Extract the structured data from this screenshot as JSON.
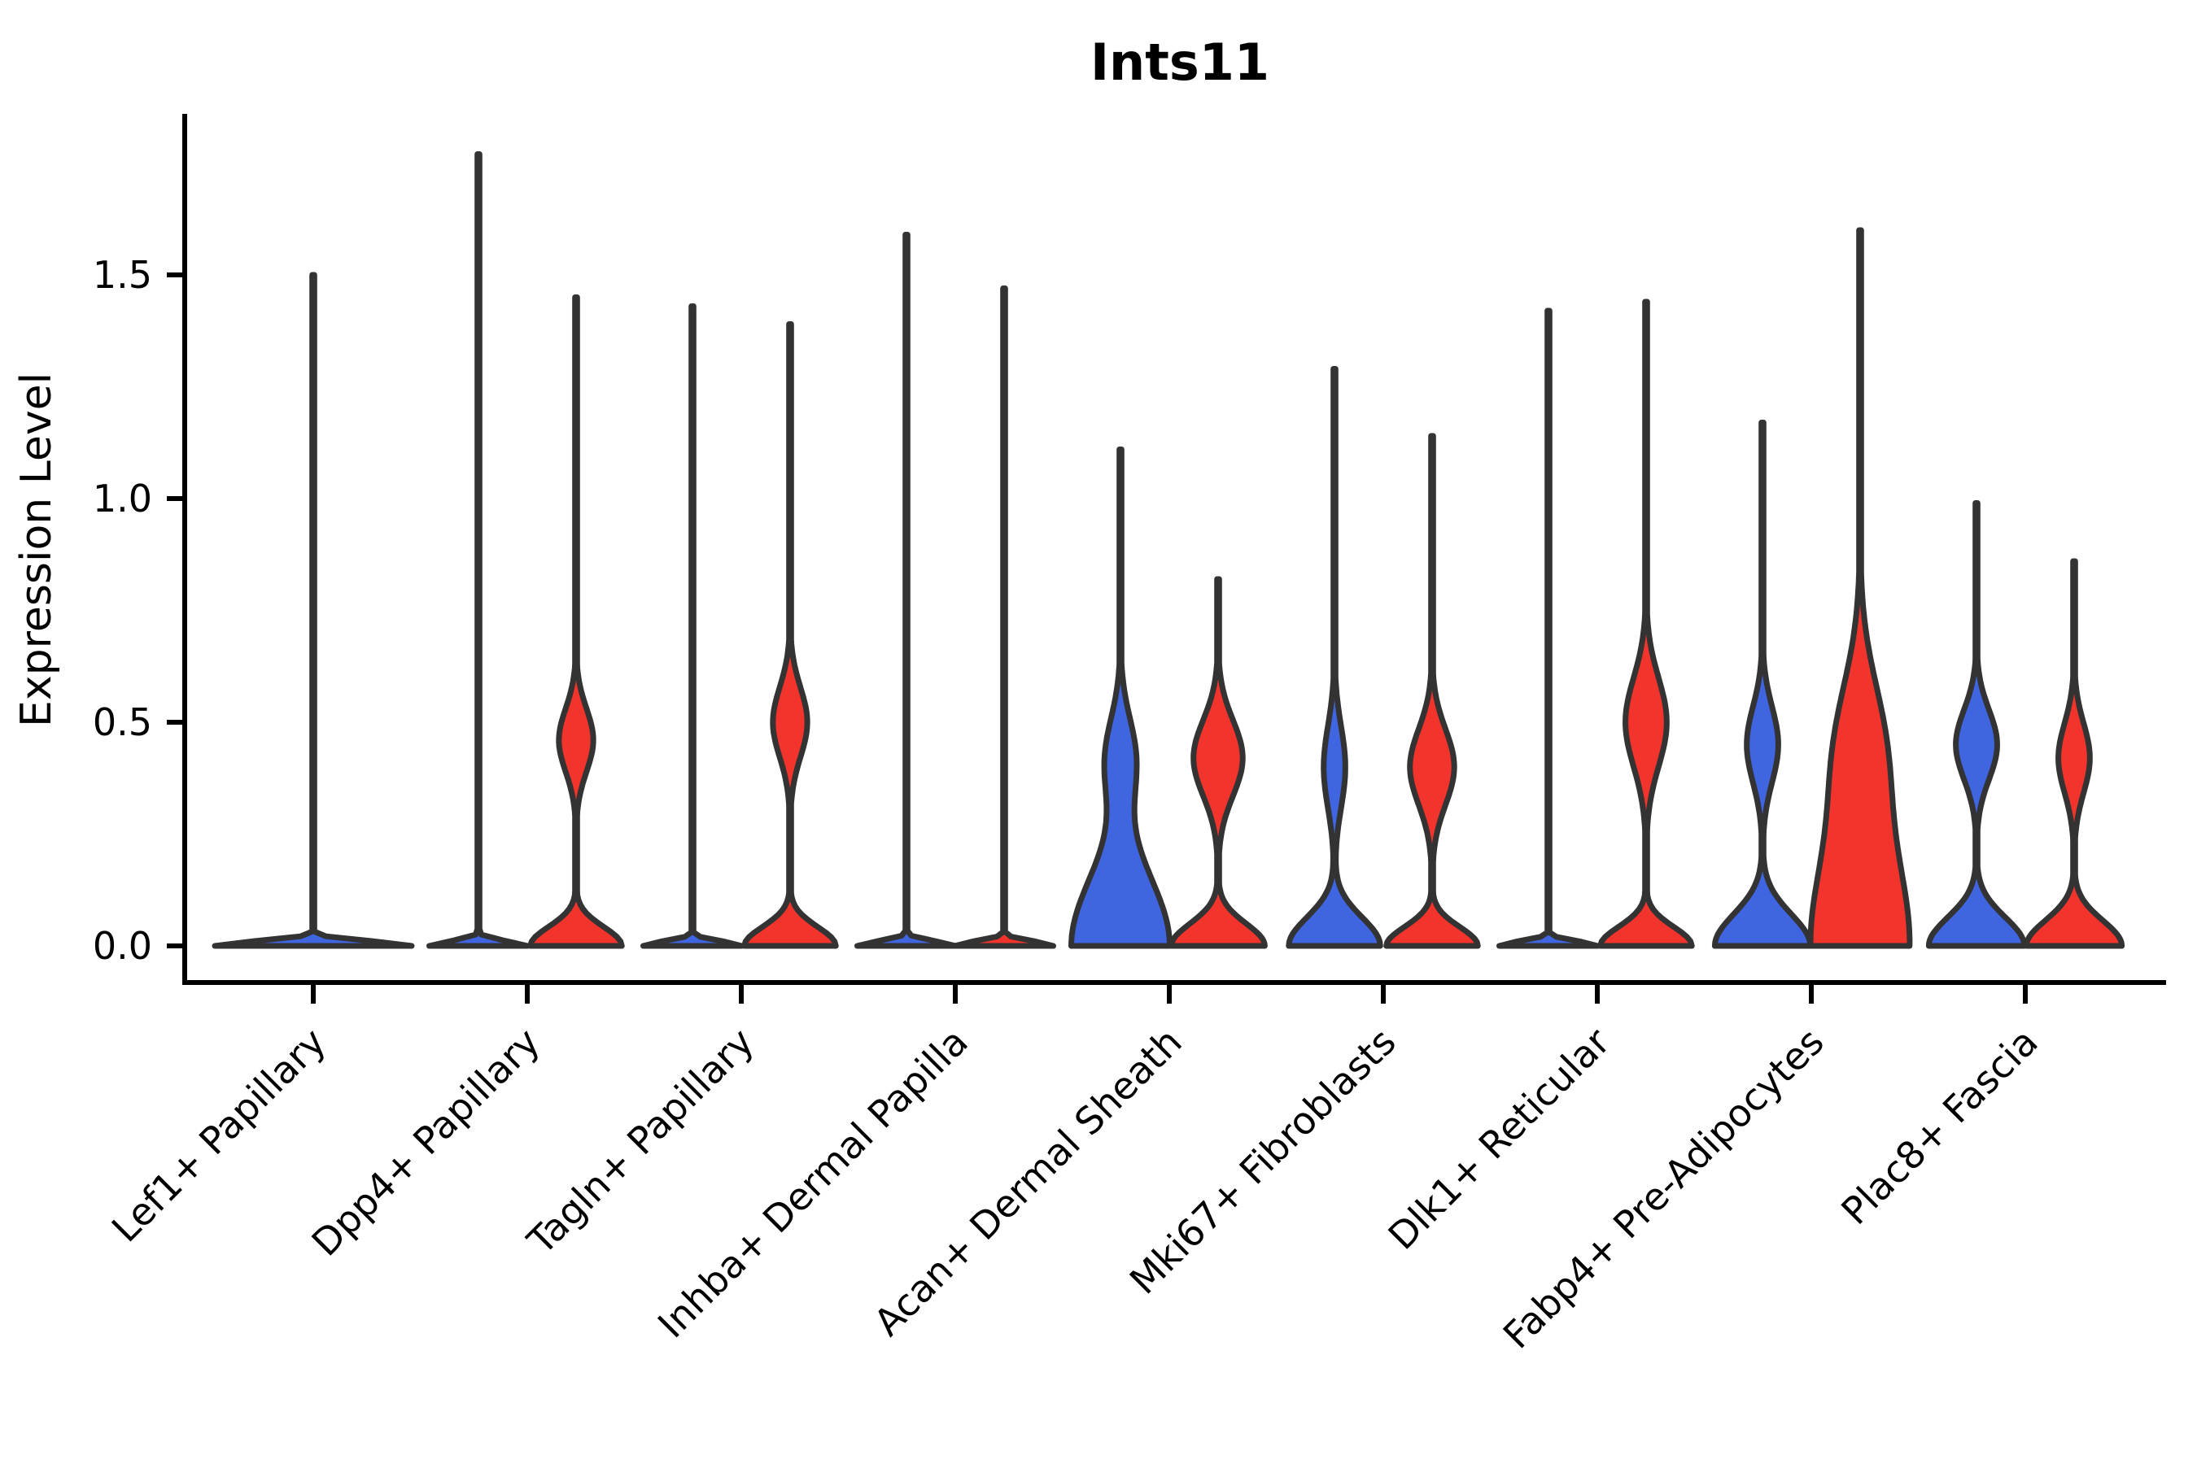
{
  "title": "Ints11",
  "ylabel": "Expression Level",
  "colors": {
    "group1": "#4065E0",
    "group2": "#F2342C",
    "stroke": "#333333",
    "axis": "#000000"
  },
  "yticks": {
    "labels": [
      "0.0",
      "0.5",
      "1.0",
      "1.5"
    ],
    "values": [
      0.0,
      0.5,
      1.0,
      1.5
    ]
  },
  "chart_data": {
    "type": "violin",
    "title": "Ints11",
    "ylabel": "Expression Level",
    "ylim": [
      -0.08,
      1.85
    ],
    "grid": false,
    "legend": "none",
    "categories": [
      "Lef1+ Papillary",
      "Dpp4+ Papillary",
      "Tagln+ Papillary",
      "Inhba+ Dermal Papilla",
      "Acan+ Dermal Sheath",
      "Mki67+ Fibroblasts",
      "Dlk1+ Reticular",
      "Fabp4+ Pre-Adipocytes",
      "Plac8+ Fascia"
    ],
    "violins": [
      {
        "category": 0,
        "group": "single",
        "max_expression": 1.5,
        "width_frac": 0.92,
        "offset_frac": 0.0,
        "density_bumps": [
          {
            "mu": 0.0,
            "amp": 1.0,
            "sigma": 0.015
          }
        ]
      },
      {
        "category": 1,
        "group": "group1",
        "max_expression": 1.77,
        "width_frac": 0.46,
        "offset_frac": -0.228,
        "density_bumps": [
          {
            "mu": 0.0,
            "amp": 1.0,
            "sigma": 0.015
          }
        ]
      },
      {
        "category": 1,
        "group": "group2",
        "max_expression": 1.45,
        "width_frac": 0.46,
        "offset_frac": 0.228,
        "density_bumps": [
          {
            "mu": 0.0,
            "amp": 0.93,
            "sigma": 0.06
          },
          {
            "mu": 0.46,
            "amp": 0.35,
            "sigma": 0.1
          }
        ]
      },
      {
        "category": 2,
        "group": "group1",
        "max_expression": 1.43,
        "width_frac": 0.46,
        "offset_frac": -0.228,
        "density_bumps": [
          {
            "mu": 0.0,
            "amp": 1.0,
            "sigma": 0.015
          }
        ]
      },
      {
        "category": 2,
        "group": "group2",
        "max_expression": 1.39,
        "width_frac": 0.46,
        "offset_frac": 0.228,
        "density_bumps": [
          {
            "mu": 0.0,
            "amp": 0.93,
            "sigma": 0.06
          },
          {
            "mu": 0.5,
            "amp": 0.35,
            "sigma": 0.11
          }
        ]
      },
      {
        "category": 3,
        "group": "group1",
        "max_expression": 1.59,
        "width_frac": 0.46,
        "offset_frac": -0.228,
        "density_bumps": [
          {
            "mu": 0.0,
            "amp": 1.0,
            "sigma": 0.015
          }
        ]
      },
      {
        "category": 3,
        "group": "group2",
        "max_expression": 1.47,
        "width_frac": 0.46,
        "offset_frac": 0.228,
        "density_bumps": [
          {
            "mu": 0.0,
            "amp": 1.0,
            "sigma": 0.015
          }
        ]
      },
      {
        "category": 4,
        "group": "group1",
        "max_expression": 1.11,
        "width_frac": 0.46,
        "offset_frac": -0.228,
        "density_bumps": [
          {
            "mu": 0.0,
            "amp": 1.0,
            "sigma": 0.22
          },
          {
            "mu": 0.42,
            "amp": 0.3,
            "sigma": 0.13
          }
        ]
      },
      {
        "category": 4,
        "group": "group2",
        "max_expression": 0.82,
        "width_frac": 0.46,
        "offset_frac": 0.228,
        "density_bumps": [
          {
            "mu": 0.0,
            "amp": 0.95,
            "sigma": 0.07
          },
          {
            "mu": 0.42,
            "amp": 0.5,
            "sigma": 0.12
          }
        ]
      },
      {
        "category": 5,
        "group": "group1",
        "max_expression": 1.29,
        "width_frac": 0.46,
        "offset_frac": -0.228,
        "density_bumps": [
          {
            "mu": 0.0,
            "amp": 0.93,
            "sigma": 0.09
          },
          {
            "mu": 0.4,
            "amp": 0.22,
            "sigma": 0.13
          }
        ]
      },
      {
        "category": 5,
        "group": "group2",
        "max_expression": 1.14,
        "width_frac": 0.46,
        "offset_frac": 0.228,
        "density_bumps": [
          {
            "mu": 0.0,
            "amp": 0.93,
            "sigma": 0.06
          },
          {
            "mu": 0.4,
            "amp": 0.45,
            "sigma": 0.12
          }
        ]
      },
      {
        "category": 6,
        "group": "group1",
        "max_expression": 1.42,
        "width_frac": 0.46,
        "offset_frac": -0.228,
        "density_bumps": [
          {
            "mu": 0.0,
            "amp": 1.0,
            "sigma": 0.015
          }
        ]
      },
      {
        "category": 6,
        "group": "group2",
        "max_expression": 1.44,
        "width_frac": 0.46,
        "offset_frac": 0.228,
        "density_bumps": [
          {
            "mu": 0.0,
            "amp": 0.93,
            "sigma": 0.06
          },
          {
            "mu": 0.5,
            "amp": 0.42,
            "sigma": 0.14
          }
        ]
      },
      {
        "category": 7,
        "group": "group1",
        "max_expression": 1.17,
        "width_frac": 0.46,
        "offset_frac": -0.228,
        "density_bumps": [
          {
            "mu": 0.0,
            "amp": 0.97,
            "sigma": 0.1
          },
          {
            "mu": 0.45,
            "amp": 0.32,
            "sigma": 0.12
          }
        ]
      },
      {
        "category": 7,
        "group": "group2",
        "max_expression": 1.6,
        "width_frac": 0.46,
        "offset_frac": 0.228,
        "density_bumps": [
          {
            "mu": 0.0,
            "amp": 1.0,
            "sigma": 0.32
          },
          {
            "mu": 0.45,
            "amp": 0.42,
            "sigma": 0.22
          }
        ]
      },
      {
        "category": 8,
        "group": "group1",
        "max_expression": 0.99,
        "width_frac": 0.46,
        "offset_frac": -0.228,
        "density_bumps": [
          {
            "mu": 0.0,
            "amp": 0.97,
            "sigma": 0.09
          },
          {
            "mu": 0.45,
            "amp": 0.42,
            "sigma": 0.11
          }
        ]
      },
      {
        "category": 8,
        "group": "group2",
        "max_expression": 0.86,
        "width_frac": 0.46,
        "offset_frac": 0.228,
        "density_bumps": [
          {
            "mu": 0.0,
            "amp": 0.97,
            "sigma": 0.08
          },
          {
            "mu": 0.42,
            "amp": 0.32,
            "sigma": 0.11
          }
        ]
      }
    ]
  }
}
